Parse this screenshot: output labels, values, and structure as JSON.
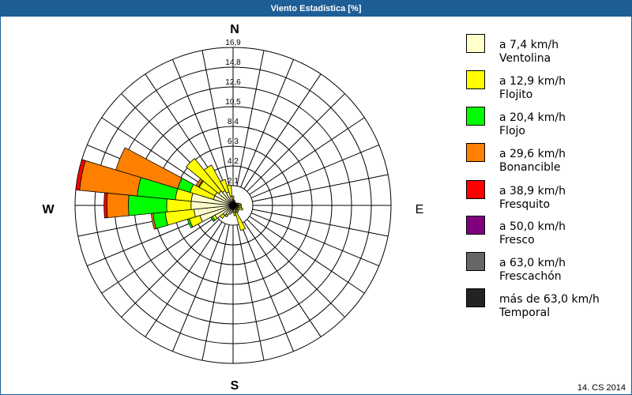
{
  "window": {
    "title": "Viento Estadística [%]"
  },
  "compass": {
    "north": "N",
    "east": "E",
    "south": "S",
    "west": "W"
  },
  "legend": {
    "items": [
      {
        "range": "a 7,4 km/h",
        "name": "Ventolina",
        "color": "#FFFFCC"
      },
      {
        "range": "a 12,9 km/h",
        "name": "Flojito",
        "color": "#FFFF00"
      },
      {
        "range": "a 20,4 km/h",
        "name": "Flojo",
        "color": "#00FF00"
      },
      {
        "range": "a 29,6 km/h",
        "name": "Bonancible",
        "color": "#FF8000"
      },
      {
        "range": "a 38,9 km/h",
        "name": "Fresquito",
        "color": "#FF0000"
      },
      {
        "range": "a 50,0 km/h",
        "name": "Fresco",
        "color": "#800080"
      },
      {
        "range": "a 63,0 km/h",
        "name": "Frescachón",
        "color": "#666666"
      },
      {
        "range": "más de 63,0 km/h",
        "name": "Temporal",
        "color": "#232326"
      }
    ]
  },
  "footer": {
    "text": "14. CS 2014"
  },
  "chart_data": {
    "type": "bar",
    "subtype": "polar-stacked wind rose",
    "title": "Viento Estadística [%]",
    "unit": "%",
    "rlim": [
      0,
      16.9
    ],
    "radial_ticks": [
      2.1,
      4.2,
      6.3,
      8.4,
      10.5,
      12.6,
      14.8,
      16.9
    ],
    "radial_tick_labels": [
      "2,1",
      "4,2",
      "6,3",
      "8,4",
      "10,5",
      "12,6",
      "14,8",
      "16,9"
    ],
    "grid": true,
    "legend_position": "right",
    "direction_unit": "degrees (compass, clockwise from N)",
    "categories": [
      0,
      11.25,
      22.5,
      33.75,
      45,
      56.25,
      67.5,
      78.75,
      90,
      101.25,
      112.5,
      123.75,
      135,
      146.25,
      157.5,
      168.75,
      180,
      191.25,
      202.5,
      213.75,
      225,
      236.25,
      247.5,
      258.75,
      270,
      281.25,
      292.5,
      303.75,
      315,
      326.25,
      337.5,
      348.75
    ],
    "series": [
      {
        "name": "Ventolina",
        "label": "a 7,4 km/h",
        "color": "#FFFFCC",
        "values": [
          0.7,
          0.6,
          0.5,
          0.4,
          0.4,
          0.4,
          0.4,
          0.5,
          0.6,
          0.5,
          0.6,
          0.5,
          0.6,
          0.6,
          0.8,
          0.8,
          0.7,
          0.8,
          1.0,
          1.2,
          1.4,
          2.2,
          3.7,
          4.2,
          4.5,
          4.5,
          2.2,
          2.2,
          2.0,
          1.8,
          1.5,
          1.0
        ]
      },
      {
        "name": "Flojito",
        "label": "a 12,9 km/h",
        "color": "#FFFF00",
        "values": [
          0.3,
          0,
          0,
          0,
          0,
          0,
          0.2,
          0.3,
          0.3,
          0.4,
          0.5,
          0.3,
          0.2,
          0.3,
          2.0,
          0.3,
          0,
          0,
          0,
          0.2,
          0.4,
          0.3,
          1.2,
          3.1,
          2.6,
          1.7,
          2.6,
          1.9,
          4.5,
          3.1,
          1.4,
          1.2
        ]
      },
      {
        "name": "Flojo",
        "label": "a 20,4 km/h",
        "color": "#00FF00",
        "values": [
          0,
          0,
          0,
          0,
          0,
          0,
          0,
          0,
          0,
          0,
          0,
          0,
          0,
          0,
          0,
          0,
          0,
          0,
          0,
          0,
          0,
          0.2,
          0.2,
          1.3,
          4.1,
          4.1,
          1.4,
          0.1,
          0,
          0,
          0,
          0
        ]
      },
      {
        "name": "Bonancible",
        "label": "a 29,6 km/h",
        "color": "#FF8000",
        "values": [
          0,
          0,
          0,
          0,
          0,
          0,
          0,
          0,
          0,
          0,
          0,
          0,
          0,
          0,
          0,
          0,
          0,
          0,
          0,
          0,
          0,
          0,
          0,
          0.2,
          2.3,
          6.2,
          6.9,
          0.3,
          0,
          0,
          0,
          0
        ]
      },
      {
        "name": "Fresquito",
        "label": "a 38,9 km/h",
        "color": "#FF0000",
        "values": [
          0,
          0,
          0,
          0,
          0,
          0,
          0,
          0,
          0,
          0,
          0,
          0,
          0,
          0,
          0,
          0,
          0,
          0,
          0,
          0,
          0,
          0,
          0,
          0,
          0.3,
          0.4,
          0,
          0,
          0,
          0,
          0,
          0
        ]
      },
      {
        "name": "Fresco",
        "label": "a 50,0 km/h",
        "color": "#800080",
        "values": [
          0,
          0,
          0,
          0,
          0,
          0,
          0,
          0,
          0,
          0,
          0,
          0,
          0,
          0,
          0,
          0,
          0,
          0,
          0,
          0,
          0,
          0,
          0,
          0,
          0,
          0,
          0,
          0,
          0,
          0,
          0,
          0
        ]
      },
      {
        "name": "Frescachón",
        "label": "a 63,0 km/h",
        "color": "#666666",
        "values": [
          0,
          0,
          0,
          0,
          0,
          0,
          0,
          0,
          0,
          0,
          0,
          0,
          0,
          0,
          0,
          0,
          0,
          0,
          0,
          0,
          0,
          0,
          0,
          0,
          0,
          0,
          0,
          0,
          0,
          0,
          0,
          0
        ]
      },
      {
        "name": "Temporal",
        "label": "más de 63,0 km/h",
        "color": "#232326",
        "values": [
          0,
          0,
          0,
          0,
          0,
          0,
          0,
          0,
          0,
          0,
          0,
          0,
          0,
          0,
          0,
          0,
          0,
          0,
          0,
          0,
          0,
          0,
          0,
          0,
          0,
          0,
          0,
          0,
          0,
          0,
          0,
          0
        ]
      }
    ]
  }
}
